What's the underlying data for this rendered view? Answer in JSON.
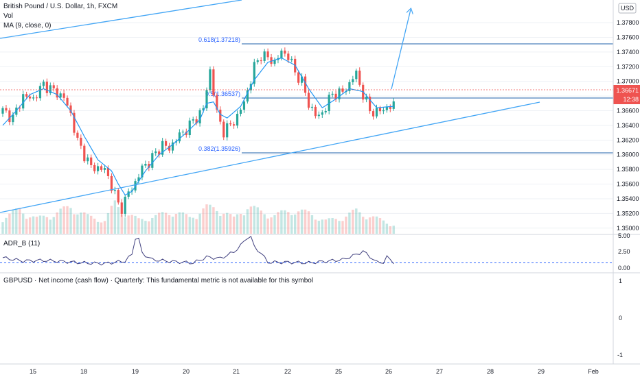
{
  "header": {
    "symbol": "British Pound / U.S. Dollar, 1h, FXCM",
    "vol_label": "Vol",
    "ma_label": "MA (9, close, 0)",
    "currency_badge": "USD"
  },
  "price_scale": {
    "labels": [
      "1.37800",
      "1.37600",
      "1.37400",
      "1.37200",
      "1.37000",
      "1.36800",
      "1.36600",
      "1.36400",
      "1.36200",
      "1.36000",
      "1.35800",
      "1.35600",
      "1.35400",
      "1.35200",
      "1.35000"
    ],
    "last_price": "1.36671",
    "countdown": "12:38"
  },
  "adr_pane": {
    "title": "ADR_B (11)",
    "scale_labels": [
      "5.00",
      "2.50",
      "0.00"
    ]
  },
  "fundamental_pane": {
    "title": "GBPUSD · Net income (cash flow) · Quarterly: This fundamental metric is not available for this symbol",
    "scale_labels": [
      "1",
      "0",
      "-1"
    ]
  },
  "time_axis": {
    "labels": [
      "15",
      "18",
      "19",
      "20",
      "21",
      "22",
      "25",
      "26",
      "27",
      "28",
      "29",
      "Feb"
    ]
  },
  "fib_levels": {
    "level_0618": "0.618(1.37218)",
    "level_05": "0.5(1.36537)",
    "level_0382": "0.382(1.35926)"
  },
  "colors": {
    "up": "#26a69a",
    "down": "#ef5350",
    "ma": "#2196f3",
    "trend": "#42a5f5",
    "fib_line": "#1e5fa8",
    "last_price": "#ef5350",
    "adr_line": "#3f3f7e",
    "grid": "#eef1f5"
  },
  "chart_data": {
    "type": "candlestick",
    "title": "British Pound / U.S. Dollar, 1h, FXCM",
    "ylim": [
      1.3497,
      1.3795
    ],
    "last_price": 1.36671,
    "x_ticks": [
      "15",
      "18",
      "19",
      "20",
      "21",
      "22",
      "25",
      "26",
      "27",
      "28",
      "29",
      "Feb"
    ],
    "close_path": [
      [
        0,
        1.366
      ],
      [
        3,
        1.365
      ],
      [
        6,
        1.368
      ],
      [
        9,
        1.3676
      ],
      [
        12,
        1.3696
      ],
      [
        15,
        1.3687
      ],
      [
        18,
        1.3678
      ],
      [
        20,
        1.3655
      ],
      [
        22,
        1.3618
      ],
      [
        24,
        1.36
      ],
      [
        26,
        1.3583
      ],
      [
        28,
        1.3582
      ],
      [
        30,
        1.358
      ],
      [
        32,
        1.3558
      ],
      [
        34,
        1.3532
      ],
      [
        35,
        1.3528
      ],
      [
        37,
        1.3548
      ],
      [
        39,
        1.3562
      ],
      [
        41,
        1.3582
      ],
      [
        43,
        1.359
      ],
      [
        45,
        1.3602
      ],
      [
        47,
        1.3614
      ],
      [
        49,
        1.3608
      ],
      [
        51,
        1.3622
      ],
      [
        53,
        1.363
      ],
      [
        55,
        1.364
      ],
      [
        57,
        1.365
      ],
      [
        59,
        1.3663
      ],
      [
        61,
        1.3715
      ],
      [
        63,
        1.3656
      ],
      [
        65,
        1.3632
      ],
      [
        67,
        1.364
      ],
      [
        69,
        1.3652
      ],
      [
        71,
        1.3672
      ],
      [
        73,
        1.3702
      ],
      [
        74,
        1.372
      ],
      [
        76,
        1.3736
      ],
      [
        78,
        1.3732
      ],
      [
        80,
        1.3726
      ],
      [
        82,
        1.374
      ],
      [
        84,
        1.3735
      ],
      [
        86,
        1.3712
      ],
      [
        88,
        1.37
      ],
      [
        90,
        1.3668
      ],
      [
        92,
        1.3655
      ],
      [
        93,
        1.365
      ],
      [
        95,
        1.3666
      ],
      [
        97,
        1.3682
      ],
      [
        99,
        1.3684
      ],
      [
        101,
        1.3688
      ],
      [
        103,
        1.3706
      ],
      [
        104,
        1.371
      ],
      [
        106,
        1.3682
      ],
      [
        108,
        1.366
      ],
      [
        110,
        1.3658
      ],
      [
        112,
        1.3662
      ],
      [
        114,
        1.3666
      ],
      [
        115,
        1.3667
      ]
    ],
    "ma_path": [
      [
        0,
        1.364
      ],
      [
        4,
        1.366
      ],
      [
        8,
        1.3682
      ],
      [
        12,
        1.369
      ],
      [
        16,
        1.3682
      ],
      [
        20,
        1.366
      ],
      [
        24,
        1.3625
      ],
      [
        28,
        1.3593
      ],
      [
        32,
        1.3578
      ],
      [
        34,
        1.356
      ],
      [
        36,
        1.3545
      ],
      [
        38,
        1.355
      ],
      [
        42,
        1.3578
      ],
      [
        46,
        1.36
      ],
      [
        50,
        1.3614
      ],
      [
        54,
        1.363
      ],
      [
        58,
        1.3648
      ],
      [
        60,
        1.367
      ],
      [
        62,
        1.3672
      ],
      [
        64,
        1.3655
      ],
      [
        66,
        1.365
      ],
      [
        70,
        1.3666
      ],
      [
        74,
        1.3702
      ],
      [
        78,
        1.3726
      ],
      [
        82,
        1.3732
      ],
      [
        86,
        1.3722
      ],
      [
        90,
        1.369
      ],
      [
        94,
        1.3664
      ],
      [
        98,
        1.3676
      ],
      [
        102,
        1.369
      ],
      [
        106,
        1.3686
      ],
      [
        110,
        1.3664
      ],
      [
        115,
        1.3666
      ]
    ],
    "volume_path": [
      [
        0,
        1.5
      ],
      [
        5,
        2.2
      ],
      [
        10,
        1.4
      ],
      [
        15,
        1.8
      ],
      [
        20,
        2.5
      ],
      [
        25,
        1.6
      ],
      [
        30,
        1.2
      ],
      [
        33,
        2.8
      ],
      [
        36,
        1.9
      ],
      [
        40,
        1.3
      ],
      [
        45,
        1.6
      ],
      [
        50,
        2.1
      ],
      [
        55,
        1.5
      ],
      [
        60,
        2.4
      ],
      [
        64,
        2.3
      ],
      [
        68,
        1.4
      ],
      [
        72,
        2.6
      ],
      [
        76,
        2.0
      ],
      [
        80,
        1.7
      ],
      [
        85,
        2.2
      ],
      [
        90,
        1.9
      ],
      [
        95,
        1.2
      ],
      [
        100,
        1.5
      ],
      [
        104,
        2.1
      ],
      [
        108,
        1.6
      ],
      [
        112,
        1.2
      ],
      [
        115,
        0.8
      ]
    ],
    "adr": {
      "title": "ADR_B (11)",
      "ylim": [
        0,
        5
      ],
      "reference": 1.0,
      "values": [
        [
          0,
          1.7
        ],
        [
          6,
          1.2
        ],
        [
          12,
          1.3
        ],
        [
          18,
          1.1
        ],
        [
          24,
          0.9
        ],
        [
          30,
          0.8
        ],
        [
          36,
          1.2
        ],
        [
          38,
          2.2
        ],
        [
          39,
          4.8
        ],
        [
          40,
          4.6
        ],
        [
          41,
          2.4
        ],
        [
          44,
          1.4
        ],
        [
          50,
          1.1
        ],
        [
          56,
          0.9
        ],
        [
          60,
          1.8
        ],
        [
          64,
          1.6
        ],
        [
          68,
          2.6
        ],
        [
          70,
          3.6
        ],
        [
          72,
          4.9
        ],
        [
          73,
          4.9
        ],
        [
          74,
          3.4
        ],
        [
          76,
          2.4
        ],
        [
          78,
          1.0
        ],
        [
          84,
          1.0
        ],
        [
          90,
          0.9
        ],
        [
          96,
          1.2
        ],
        [
          100,
          1.4
        ],
        [
          104,
          2.2
        ],
        [
          106,
          2.7
        ],
        [
          108,
          1.9
        ],
        [
          110,
          1.0
        ],
        [
          112,
          1.0
        ],
        [
          113,
          1.8
        ],
        [
          115,
          1.0
        ]
      ]
    }
  }
}
